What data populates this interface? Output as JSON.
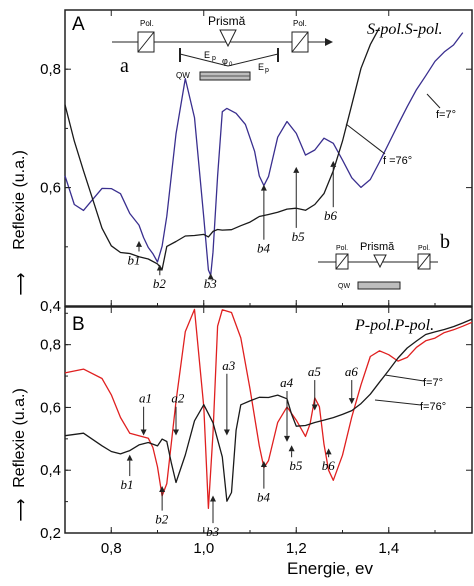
{
  "chart_data": [
    {
      "type": "line",
      "panel": "A",
      "title": "S-pol.S-pol.",
      "ylabel": "Reflexie (u.a.)",
      "xlabel": "",
      "xlim": [
        0.7,
        1.58
      ],
      "ylim": [
        0.4,
        0.9
      ],
      "xticks": [
        0.8,
        1.0,
        1.2,
        1.4
      ],
      "yticks": [
        0.4,
        0.6,
        0.8
      ],
      "ytick_labels": [
        "0,4",
        "0,6",
        "0,8"
      ],
      "series": [
        {
          "name": "f=7°",
          "color": "#3a2f8f",
          "x": [
            0.7,
            0.72,
            0.74,
            0.76,
            0.78,
            0.8,
            0.82,
            0.84,
            0.86,
            0.87,
            0.88,
            0.89,
            0.9,
            0.91,
            0.92,
            0.94,
            0.96,
            0.98,
            1.0,
            1.01,
            1.015,
            1.02,
            1.03,
            1.04,
            1.05,
            1.07,
            1.09,
            1.11,
            1.12,
            1.13,
            1.14,
            1.16,
            1.18,
            1.2,
            1.22,
            1.24,
            1.26,
            1.28,
            1.3,
            1.32,
            1.34,
            1.36,
            1.38,
            1.4,
            1.42,
            1.44,
            1.46,
            1.48,
            1.5,
            1.52,
            1.54,
            1.56
          ],
          "y": [
            0.62,
            0.57,
            0.56,
            0.58,
            0.6,
            0.6,
            0.59,
            0.555,
            0.535,
            0.515,
            0.5,
            0.49,
            0.475,
            0.5,
            0.55,
            0.69,
            0.785,
            0.72,
            0.55,
            0.46,
            0.45,
            0.49,
            0.62,
            0.73,
            0.735,
            0.725,
            0.705,
            0.66,
            0.62,
            0.605,
            0.62,
            0.685,
            0.71,
            0.69,
            0.655,
            0.665,
            0.685,
            0.675,
            0.645,
            0.615,
            0.6,
            0.615,
            0.645,
            0.675,
            0.705,
            0.735,
            0.765,
            0.79,
            0.815,
            0.83,
            0.84,
            0.86
          ]
        },
        {
          "name": "f=76°",
          "color": "#1a1a1a",
          "x": [
            0.7,
            0.72,
            0.74,
            0.76,
            0.78,
            0.8,
            0.82,
            0.84,
            0.86,
            0.88,
            0.9,
            0.91,
            0.92,
            0.94,
            0.96,
            0.98,
            1.0,
            1.01,
            1.02,
            1.03,
            1.04,
            1.06,
            1.08,
            1.1,
            1.12,
            1.14,
            1.16,
            1.18,
            1.2,
            1.22,
            1.24,
            1.26,
            1.28,
            1.3,
            1.32,
            1.34,
            1.36,
            1.38
          ],
          "y": [
            0.74,
            0.68,
            0.63,
            0.58,
            0.53,
            0.5,
            0.49,
            0.49,
            0.485,
            0.48,
            0.47,
            0.46,
            0.5,
            0.51,
            0.52,
            0.52,
            0.52,
            0.515,
            0.525,
            0.53,
            0.53,
            0.53,
            0.535,
            0.54,
            0.55,
            0.555,
            0.56,
            0.565,
            0.565,
            0.56,
            0.57,
            0.59,
            0.63,
            0.68,
            0.74,
            0.8,
            0.84,
            0.87
          ]
        }
      ],
      "annotations": [
        "b1",
        "b2",
        "b3",
        "b4",
        "b5",
        "b6"
      ],
      "series_labels": [
        "f=7°",
        "f =76°"
      ],
      "inset_a": {
        "letter": "a",
        "labels": [
          "Pol.",
          "Prismă",
          "Pol.",
          "E",
          "p",
          "E",
          "p",
          "QW",
          "φ",
          "0"
        ]
      },
      "inset_b": {
        "letter": "b",
        "labels": [
          "Pol.",
          "Prismă",
          "Pol.",
          "QW"
        ]
      }
    },
    {
      "type": "line",
      "panel": "B",
      "title": "P-pol.P-pol.",
      "ylabel": "Reflexie (u.a.)",
      "xlabel": "Energie, ev",
      "xlim": [
        0.7,
        1.58
      ],
      "ylim": [
        0.2,
        0.92
      ],
      "xticks": [
        0.8,
        1.0,
        1.2,
        1.4
      ],
      "xtick_labels": [
        "0,8",
        "1,0",
        "1,2",
        "1,4"
      ],
      "yticks": [
        0.2,
        0.4,
        0.6,
        0.8
      ],
      "ytick_labels": [
        "0,2",
        "0,4",
        "0,6",
        "0,8"
      ],
      "series": [
        {
          "name": "f=7°",
          "color": "#e02020",
          "x": [
            0.7,
            0.74,
            0.78,
            0.8,
            0.82,
            0.84,
            0.86,
            0.88,
            0.89,
            0.9,
            0.91,
            0.92,
            0.94,
            0.96,
            0.98,
            1.0,
            1.01,
            1.02,
            1.03,
            1.04,
            1.06,
            1.08,
            1.1,
            1.12,
            1.13,
            1.14,
            1.16,
            1.18,
            1.2,
            1.22,
            1.23,
            1.24,
            1.25,
            1.26,
            1.27,
            1.28,
            1.3,
            1.32,
            1.34,
            1.36,
            1.38,
            1.4,
            1.42,
            1.44,
            1.46,
            1.48,
            1.5,
            1.52,
            1.54,
            1.56,
            1.58
          ],
          "y": [
            0.71,
            0.72,
            0.69,
            0.64,
            0.57,
            0.52,
            0.51,
            0.5,
            0.47,
            0.41,
            0.32,
            0.36,
            0.62,
            0.84,
            0.91,
            0.6,
            0.28,
            0.52,
            0.86,
            0.91,
            0.9,
            0.82,
            0.66,
            0.48,
            0.41,
            0.43,
            0.55,
            0.6,
            0.56,
            0.51,
            0.55,
            0.63,
            0.6,
            0.48,
            0.4,
            0.37,
            0.45,
            0.57,
            0.67,
            0.76,
            0.78,
            0.77,
            0.75,
            0.76,
            0.79,
            0.81,
            0.82,
            0.84,
            0.85,
            0.86,
            0.87
          ]
        },
        {
          "name": "f=76°",
          "color": "#1a1a1a",
          "x": [
            0.7,
            0.74,
            0.78,
            0.8,
            0.82,
            0.84,
            0.86,
            0.88,
            0.9,
            0.91,
            0.92,
            0.93,
            0.94,
            0.96,
            0.98,
            1.0,
            1.02,
            1.04,
            1.05,
            1.06,
            1.07,
            1.08,
            1.1,
            1.12,
            1.14,
            1.16,
            1.18,
            1.19,
            1.2,
            1.22,
            1.24,
            1.26,
            1.28,
            1.3,
            1.32,
            1.34,
            1.36,
            1.38,
            1.4,
            1.42,
            1.44,
            1.46,
            1.48,
            1.5,
            1.52,
            1.54,
            1.56,
            1.58
          ],
          "y": [
            0.51,
            0.52,
            0.48,
            0.46,
            0.45,
            0.46,
            0.48,
            0.49,
            0.48,
            0.5,
            0.49,
            0.42,
            0.36,
            0.45,
            0.56,
            0.61,
            0.55,
            0.44,
            0.3,
            0.33,
            0.53,
            0.61,
            0.62,
            0.63,
            0.63,
            0.64,
            0.63,
            0.58,
            0.54,
            0.54,
            0.55,
            0.56,
            0.57,
            0.58,
            0.59,
            0.61,
            0.64,
            0.68,
            0.72,
            0.76,
            0.79,
            0.81,
            0.83,
            0.84,
            0.85,
            0.86,
            0.87,
            0.88
          ]
        }
      ],
      "annotations": [
        "a1",
        "a2",
        "a3",
        "a4",
        "a5",
        "a6",
        "b1",
        "b2",
        "b3",
        "b4",
        "b5",
        "b6"
      ],
      "series_labels": [
        "f=7°",
        "f=76°"
      ]
    }
  ],
  "panel_letters": {
    "a": "A",
    "b": "B"
  },
  "arrow_glyph": "⟶"
}
